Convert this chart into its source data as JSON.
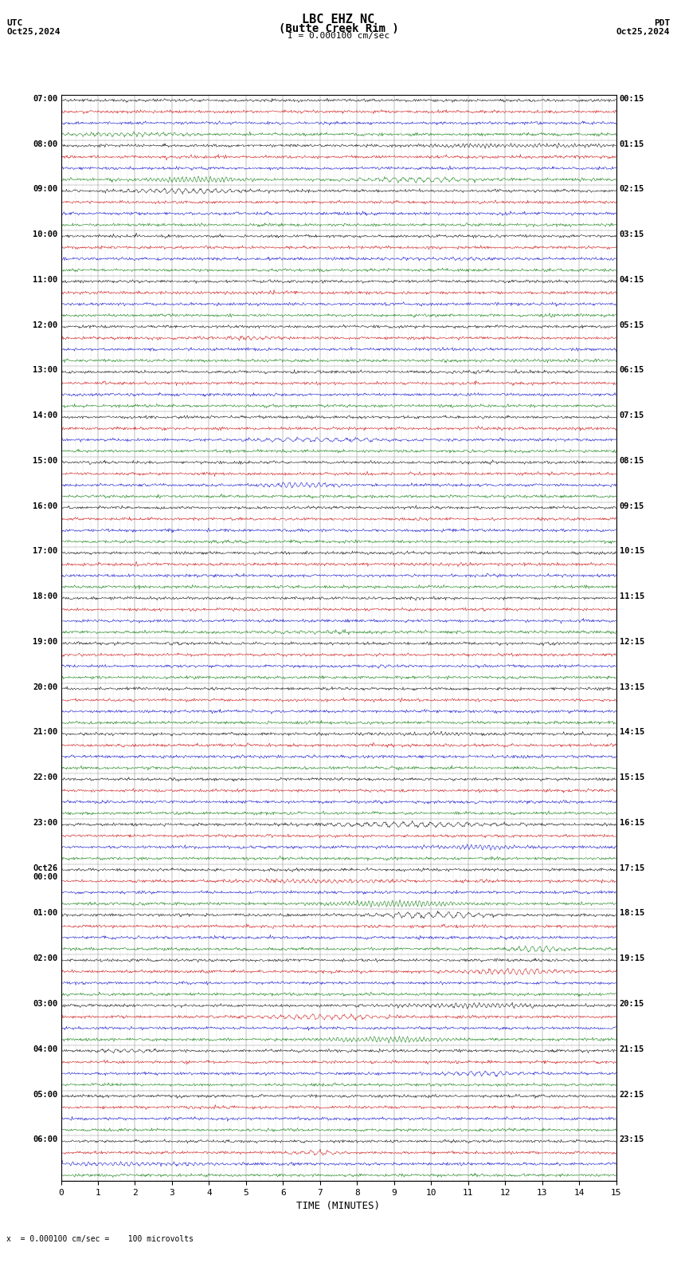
{
  "title_line1": "LBC EHZ NC",
  "title_line2": "(Butte Creek Rim )",
  "scale_label": "I = 0.000100 cm/sec",
  "left_header": "UTC",
  "left_date": "Oct25,2024",
  "right_header": "PDT",
  "right_date": "Oct25,2024",
  "footer_note": "x  = 0.000100 cm/sec =    100 microvolts",
  "xlabel": "TIME (MINUTES)",
  "background_color": "#ffffff",
  "trace_color_black": "#000000",
  "trace_color_red": "#cc0000",
  "trace_color_blue": "#0000cc",
  "trace_color_green": "#007700",
  "grid_color": "#888888",
  "fig_width": 8.5,
  "fig_height": 15.84,
  "dpi": 100,
  "utc_labels": [
    "07:00",
    "08:00",
    "09:00",
    "10:00",
    "11:00",
    "12:00",
    "13:00",
    "14:00",
    "15:00",
    "16:00",
    "17:00",
    "18:00",
    "19:00",
    "20:00",
    "21:00",
    "22:00",
    "23:00",
    "Oct26\n00:00",
    "01:00",
    "02:00",
    "03:00",
    "04:00",
    "05:00",
    "06:00"
  ],
  "pdt_labels": [
    "00:15",
    "01:15",
    "02:15",
    "03:15",
    "04:15",
    "05:15",
    "06:15",
    "07:15",
    "08:15",
    "09:15",
    "10:15",
    "11:15",
    "12:15",
    "13:15",
    "14:15",
    "15:15",
    "16:15",
    "17:15",
    "18:15",
    "19:15",
    "20:15",
    "21:15",
    "22:15",
    "23:15"
  ],
  "n_rows": 24,
  "minutes_per_row": 15,
  "seed": 42
}
